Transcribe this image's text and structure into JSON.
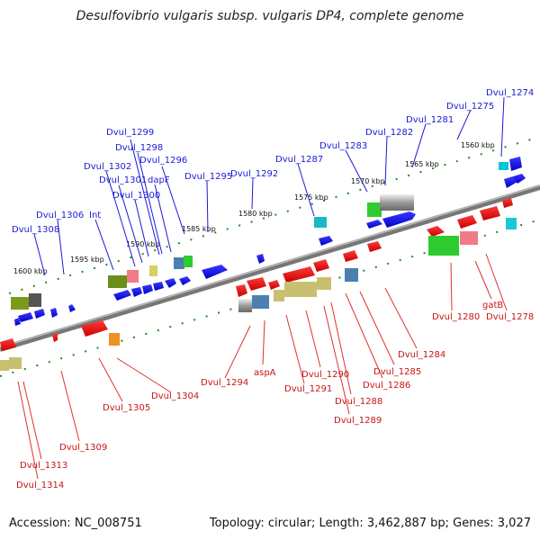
{
  "title": "Desulfovibrio vulgaris subsp. vulgaris DP4, complete genome",
  "footer": {
    "accession": "Accession: NC_008751",
    "stats": "Topology: circular; Length: 3,462,887 bp; Genes: 3,027"
  },
  "kbp_labels": [
    "1560 kbp",
    "1565 kbp",
    "1570 kbp",
    "1575 kbp",
    "1580 kbp",
    "1585 kbp",
    "1590 kbp",
    "1595 kbp",
    "1600 kbp"
  ],
  "top_labels": [
    "Dvul_1274",
    "Dvul_1275",
    "Dvul_1281",
    "Dvul_1282",
    "Dvul_1283",
    "Dvul_1287",
    "Dvul_1292",
    "Dvul_1295",
    "Dvul_1296",
    "dapF",
    "Dvul_1298",
    "Dvul_1299",
    "Dvul_1300",
    "Dvul_1301",
    "Dvul_1302",
    "Int",
    "Dvul_1306",
    "Dvul_1308"
  ],
  "bottom_labels": [
    "Dvul_1278",
    "gatB",
    "Dvul_1280",
    "Dvul_1284",
    "Dvul_1285",
    "Dvul_1286",
    "Dvul_1288",
    "Dvul_1289",
    "Dvul_1290",
    "Dvul_1291",
    "aspA",
    "Dvul_1294",
    "Dvul_1304",
    "Dvul_1305",
    "Dvul_1309",
    "Dvul_1313",
    "Dvul_1314"
  ]
}
